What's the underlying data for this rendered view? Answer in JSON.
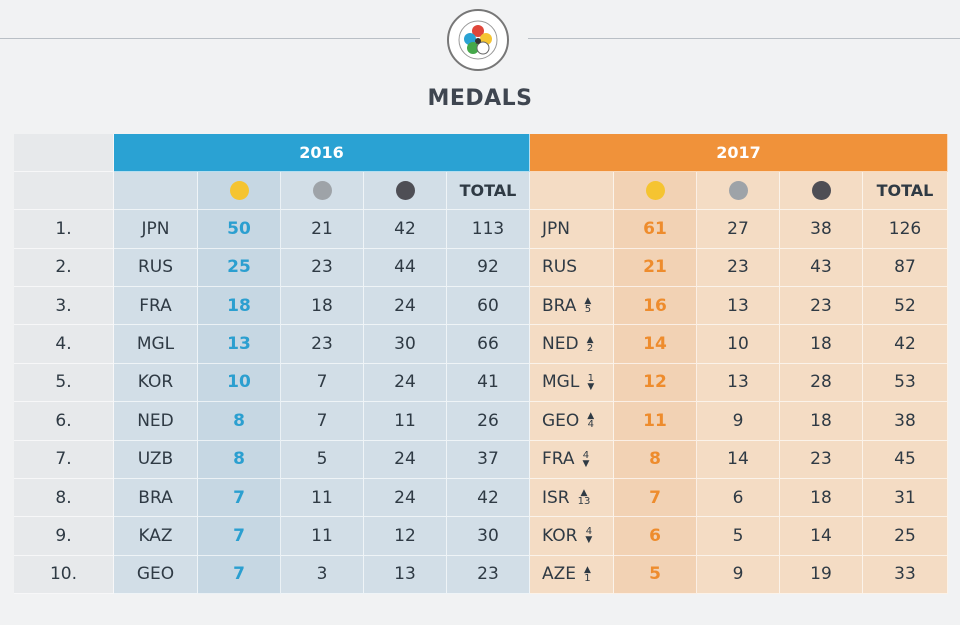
{
  "title": "MEDALS",
  "logo": {
    "icon": "ijf-logo-icon",
    "ring_text": "INTERNATIONAL JUDO FEDERATION"
  },
  "years": {
    "left": "2016",
    "right": "2017"
  },
  "total_label": "TOTAL",
  "colors": {
    "gold": "#f5c431",
    "silver": "#9ea3a8",
    "bronze": "#4e4e55",
    "accent_2016": "#2aa2d3",
    "accent_2017": "#f0923a"
  },
  "rows": [
    {
      "rank": "1.",
      "c16": "JPN",
      "g16": "50",
      "s16": "21",
      "b16": "42",
      "t16": "113",
      "c17": "JPN",
      "chg": "",
      "dir": "",
      "g17": "61",
      "s17": "27",
      "b17": "38",
      "t17": "126"
    },
    {
      "rank": "2.",
      "c16": "RUS",
      "g16": "25",
      "s16": "23",
      "b16": "44",
      "t16": "92",
      "c17": "RUS",
      "chg": "",
      "dir": "",
      "g17": "21",
      "s17": "23",
      "b17": "43",
      "t17": "87"
    },
    {
      "rank": "3.",
      "c16": "FRA",
      "g16": "18",
      "s16": "18",
      "b16": "24",
      "t16": "60",
      "c17": "BRA",
      "chg": "5",
      "dir": "up",
      "g17": "16",
      "s17": "13",
      "b17": "23",
      "t17": "52"
    },
    {
      "rank": "4.",
      "c16": "MGL",
      "g16": "13",
      "s16": "23",
      "b16": "30",
      "t16": "66",
      "c17": "NED",
      "chg": "2",
      "dir": "up",
      "g17": "14",
      "s17": "10",
      "b17": "18",
      "t17": "42"
    },
    {
      "rank": "5.",
      "c16": "KOR",
      "g16": "10",
      "s16": "7",
      "b16": "24",
      "t16": "41",
      "c17": "MGL",
      "chg": "1",
      "dir": "down",
      "g17": "12",
      "s17": "13",
      "b17": "28",
      "t17": "53"
    },
    {
      "rank": "6.",
      "c16": "NED",
      "g16": "8",
      "s16": "7",
      "b16": "11",
      "t16": "26",
      "c17": "GEO",
      "chg": "4",
      "dir": "up",
      "g17": "11",
      "s17": "9",
      "b17": "18",
      "t17": "38"
    },
    {
      "rank": "7.",
      "c16": "UZB",
      "g16": "8",
      "s16": "5",
      "b16": "24",
      "t16": "37",
      "c17": "FRA",
      "chg": "4",
      "dir": "down",
      "g17": "8",
      "s17": "14",
      "b17": "23",
      "t17": "45"
    },
    {
      "rank": "8.",
      "c16": "BRA",
      "g16": "7",
      "s16": "11",
      "b16": "24",
      "t16": "42",
      "c17": "ISR",
      "chg": "13",
      "dir": "up",
      "g17": "7",
      "s17": "6",
      "b17": "18",
      "t17": "31"
    },
    {
      "rank": "9.",
      "c16": "KAZ",
      "g16": "7",
      "s16": "11",
      "b16": "12",
      "t16": "30",
      "c17": "KOR",
      "chg": "4",
      "dir": "down",
      "g17": "6",
      "s17": "5",
      "b17": "14",
      "t17": "25"
    },
    {
      "rank": "10.",
      "c16": "GEO",
      "g16": "7",
      "s16": "3",
      "b16": "13",
      "t16": "23",
      "c17": "AZE",
      "chg": "1",
      "dir": "up",
      "g17": "5",
      "s17": "9",
      "b17": "19",
      "t17": "33"
    }
  ]
}
